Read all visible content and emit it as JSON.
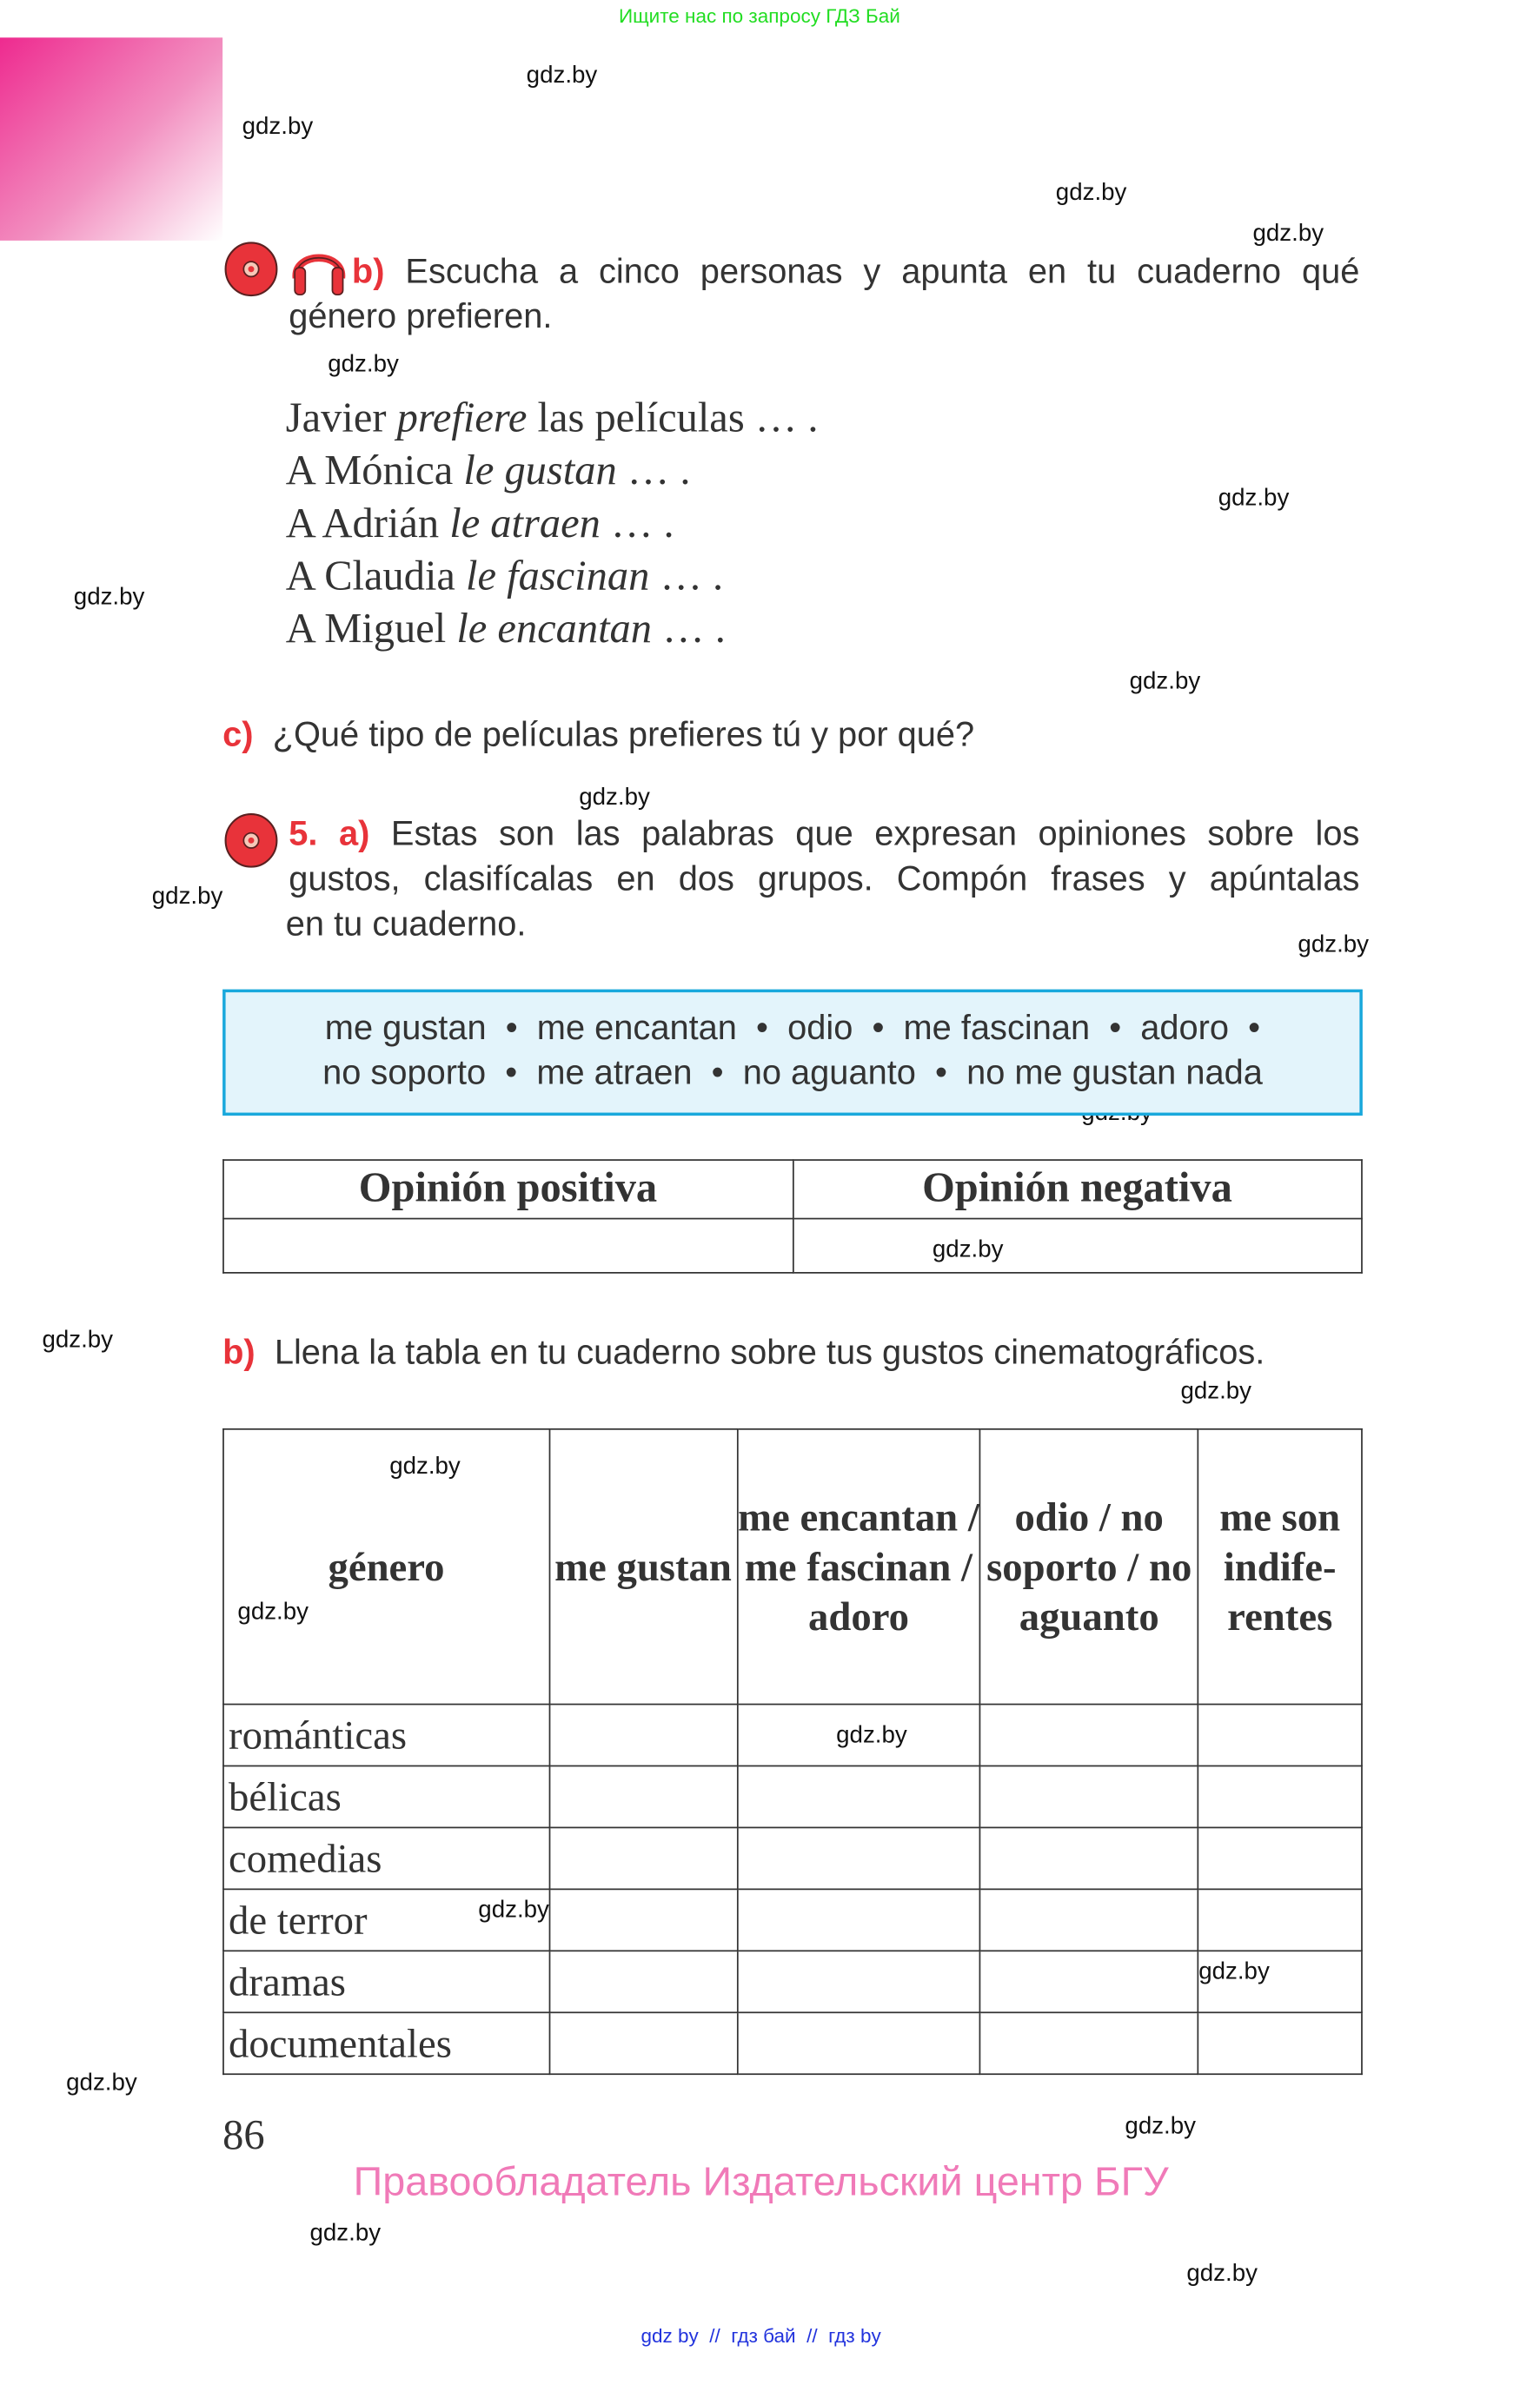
{
  "header_note": "Ищите нас по запросу ГДЗ Бай",
  "watermark": "gdz.by",
  "ex4b": {
    "label": "b)",
    "line1": "Escucha a cinco personas y apunta en tu cuaderno qué",
    "line2": "género prefieren."
  },
  "sentences": [
    {
      "pre": "Javier ",
      "verb": "prefiere",
      "post": " las películas … ."
    },
    {
      "pre": "A Mónica ",
      "verb": "le gustan",
      "post": " … ."
    },
    {
      "pre": "A Adrián ",
      "verb": "le atraen",
      "post": " … ."
    },
    {
      "pre": "A Claudia ",
      "verb": "le fascinan",
      "post": " … ."
    },
    {
      "pre": "A Miguel ",
      "verb": "le encantan",
      "post": " … ."
    }
  ],
  "ex4c": {
    "label": "c)",
    "text": "¿Qué tipo de películas prefieres tú y por qué?"
  },
  "ex5a": {
    "label": "5. a)",
    "line1": "Estas son las palabras que expresan opiniones sobre los",
    "line2": "gustos, clasifícalas en dos grupos. Compón frases y apúntalas",
    "line3": "en tu cuaderno."
  },
  "word_box": {
    "line1": "me gustan  •  me encantan  •  odio  •  me fascinan  •  adoro  •",
    "line2": "no soporto  •  me atraen  •  no aguanto  •  no me gustan nada"
  },
  "opinion_table": {
    "headers": [
      "Opinión positiva",
      "Opinión negativa"
    ]
  },
  "ex5b": {
    "label": "b)",
    "text": "Llena la tabla en tu cuaderno sobre tus gustos cinematográficos."
  },
  "genre_table": {
    "headers": [
      "género",
      "me gustan",
      "me encantan / me fascinan / adoro",
      "odio / no soporto / no aguanto",
      "me son indife-rentes"
    ],
    "rows": [
      "románticas",
      "bélicas",
      "comedias",
      "de terror",
      "dramas",
      "documentales"
    ]
  },
  "page_number": "86",
  "copyright": "Правообладатель Издательский центр БГУ",
  "footer_links": "gdz by  //  гдз бай  //  гдз by",
  "colors": {
    "accent_red": "#e8333a",
    "box_border": "#19a8dc",
    "box_bg": "#e3f4fb",
    "copyright_pink": "#f07ab8",
    "header_green": "#22dd22"
  },
  "icons": [
    "cd-audio-icon",
    "headphones-icon",
    "cd-audio-icon"
  ]
}
